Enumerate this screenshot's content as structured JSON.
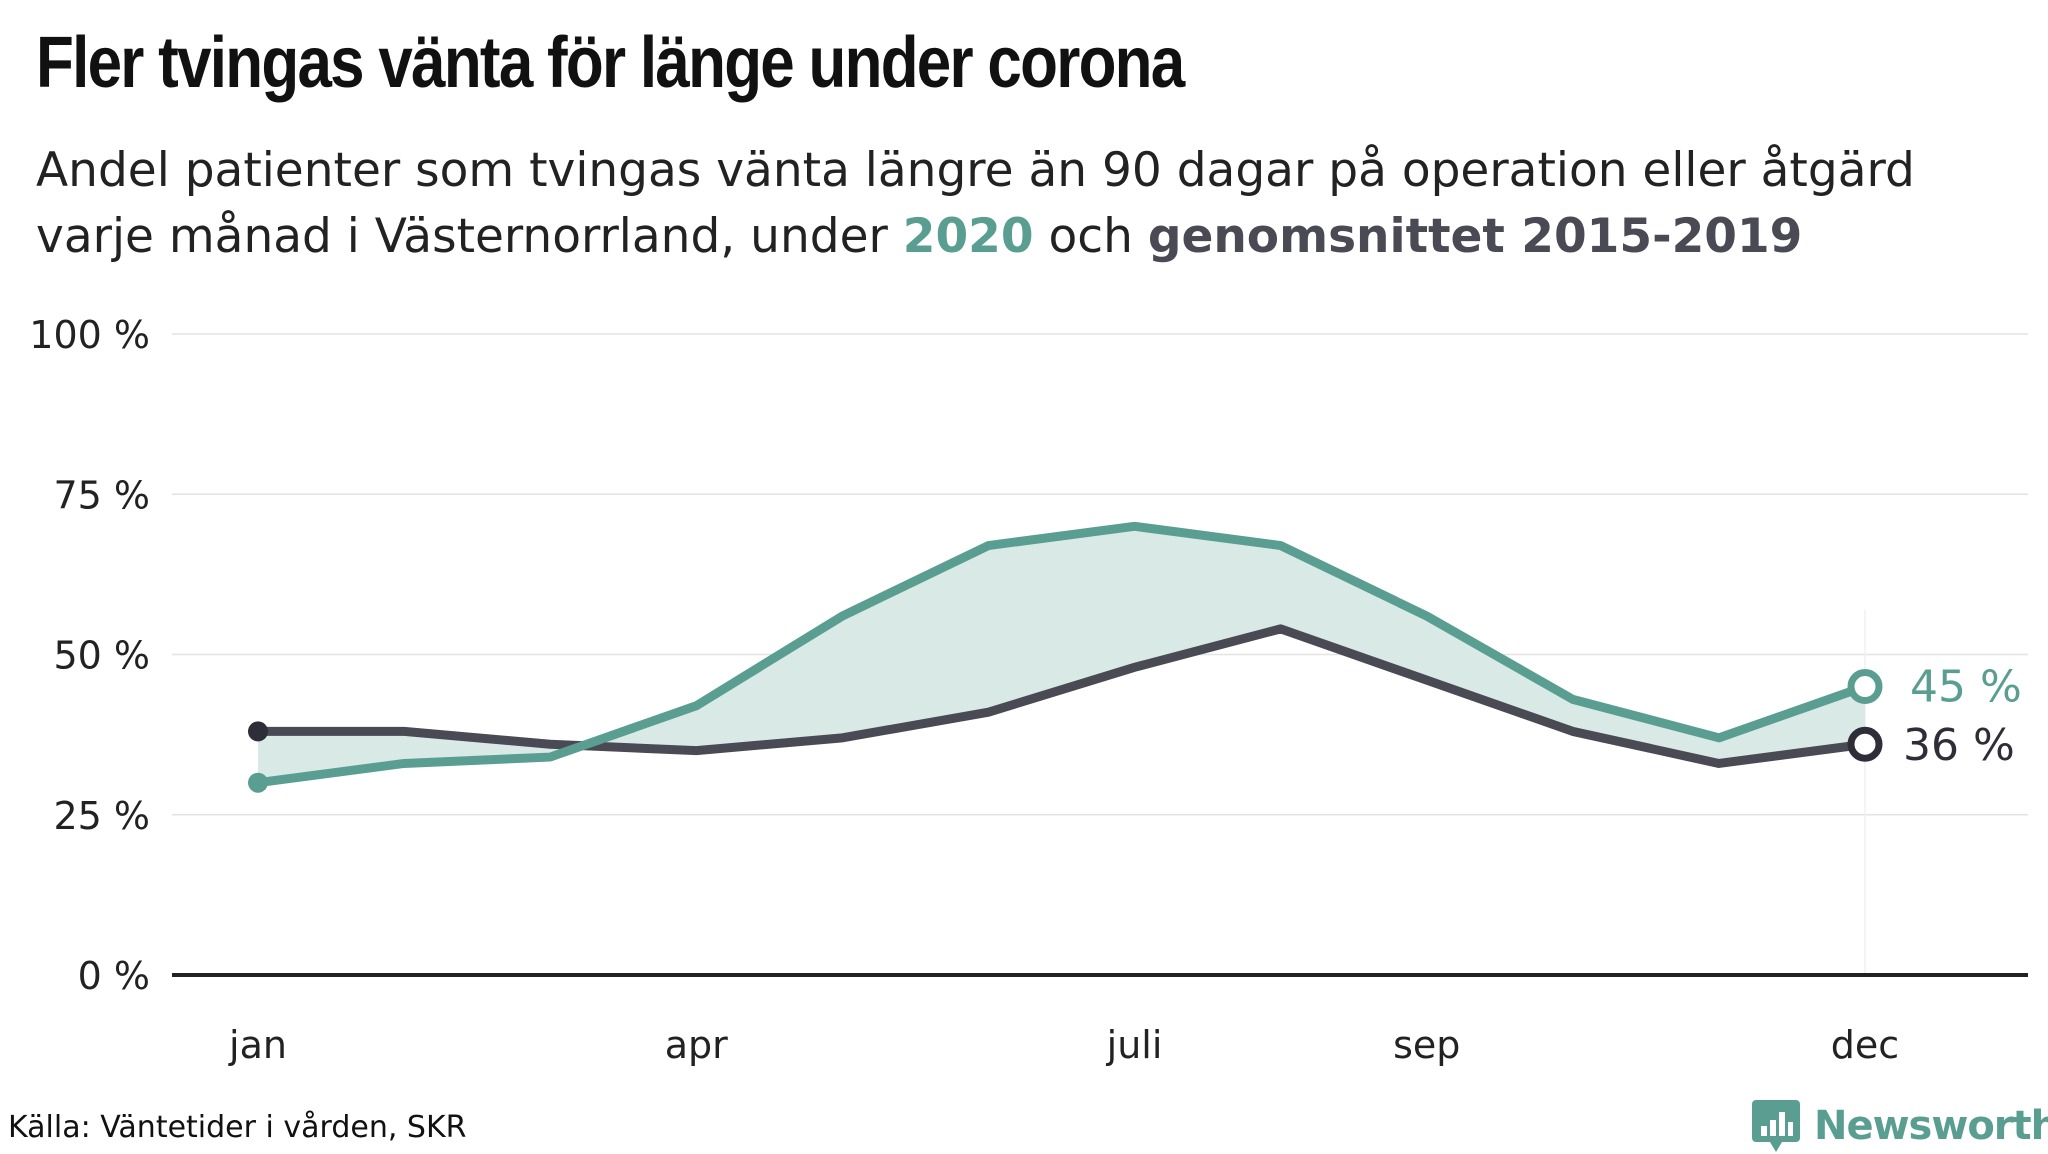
{
  "header": {
    "title": "Fler tvingas vänta för länge under corona",
    "subtitle_line1": "Andel patienter som tvingas vänta längre än 90 dagar på operation eller åtgärd",
    "subtitle_line2_prefix": "varje månad i Västernorrland, under ",
    "subtitle_highlight_2020": "2020",
    "subtitle_mid": " och ",
    "subtitle_highlight_avg": "genomsnittet 2015-2019"
  },
  "colors": {
    "series_2020": "#5a9e92",
    "series_avg": "#4a4a55",
    "fill_between": "#d9e9e6",
    "axis": "#222222",
    "grid": "#e3e3e3"
  },
  "chart_data": {
    "type": "line",
    "x_months": [
      1,
      2,
      3,
      4,
      5,
      6,
      7,
      8,
      9,
      10,
      11,
      12
    ],
    "x_tick_labels": [
      {
        "month": 1,
        "label": "jan"
      },
      {
        "month": 4,
        "label": "apr"
      },
      {
        "month": 7,
        "label": "juli"
      },
      {
        "month": 9,
        "label": "sep"
      },
      {
        "month": 12,
        "label": "dec"
      }
    ],
    "y_ticks": [
      {
        "value": 0,
        "label": "0 %"
      },
      {
        "value": 25,
        "label": "25 %"
      },
      {
        "value": 50,
        "label": "50 %"
      },
      {
        "value": 75,
        "label": "75 %"
      },
      {
        "value": 100,
        "label": "100 %"
      }
    ],
    "ylim": [
      0,
      100
    ],
    "xlim": [
      1,
      12
    ],
    "grid": true,
    "series": [
      {
        "key": "y2020",
        "values": [
          30,
          33,
          34,
          42,
          56,
          67,
          70,
          67,
          56,
          43,
          37,
          45
        ],
        "end_label": "45 %"
      },
      {
        "key": "avg",
        "values": [
          38,
          38,
          36,
          35,
          37,
          41,
          48,
          54,
          46,
          38,
          33,
          36
        ],
        "end_label": "36 %"
      }
    ]
  },
  "footer": {
    "source": "Källa: Väntetider i vården, SKR",
    "brand": "Newsworthy",
    "brand_icon": "newsworthy-logo-icon"
  }
}
